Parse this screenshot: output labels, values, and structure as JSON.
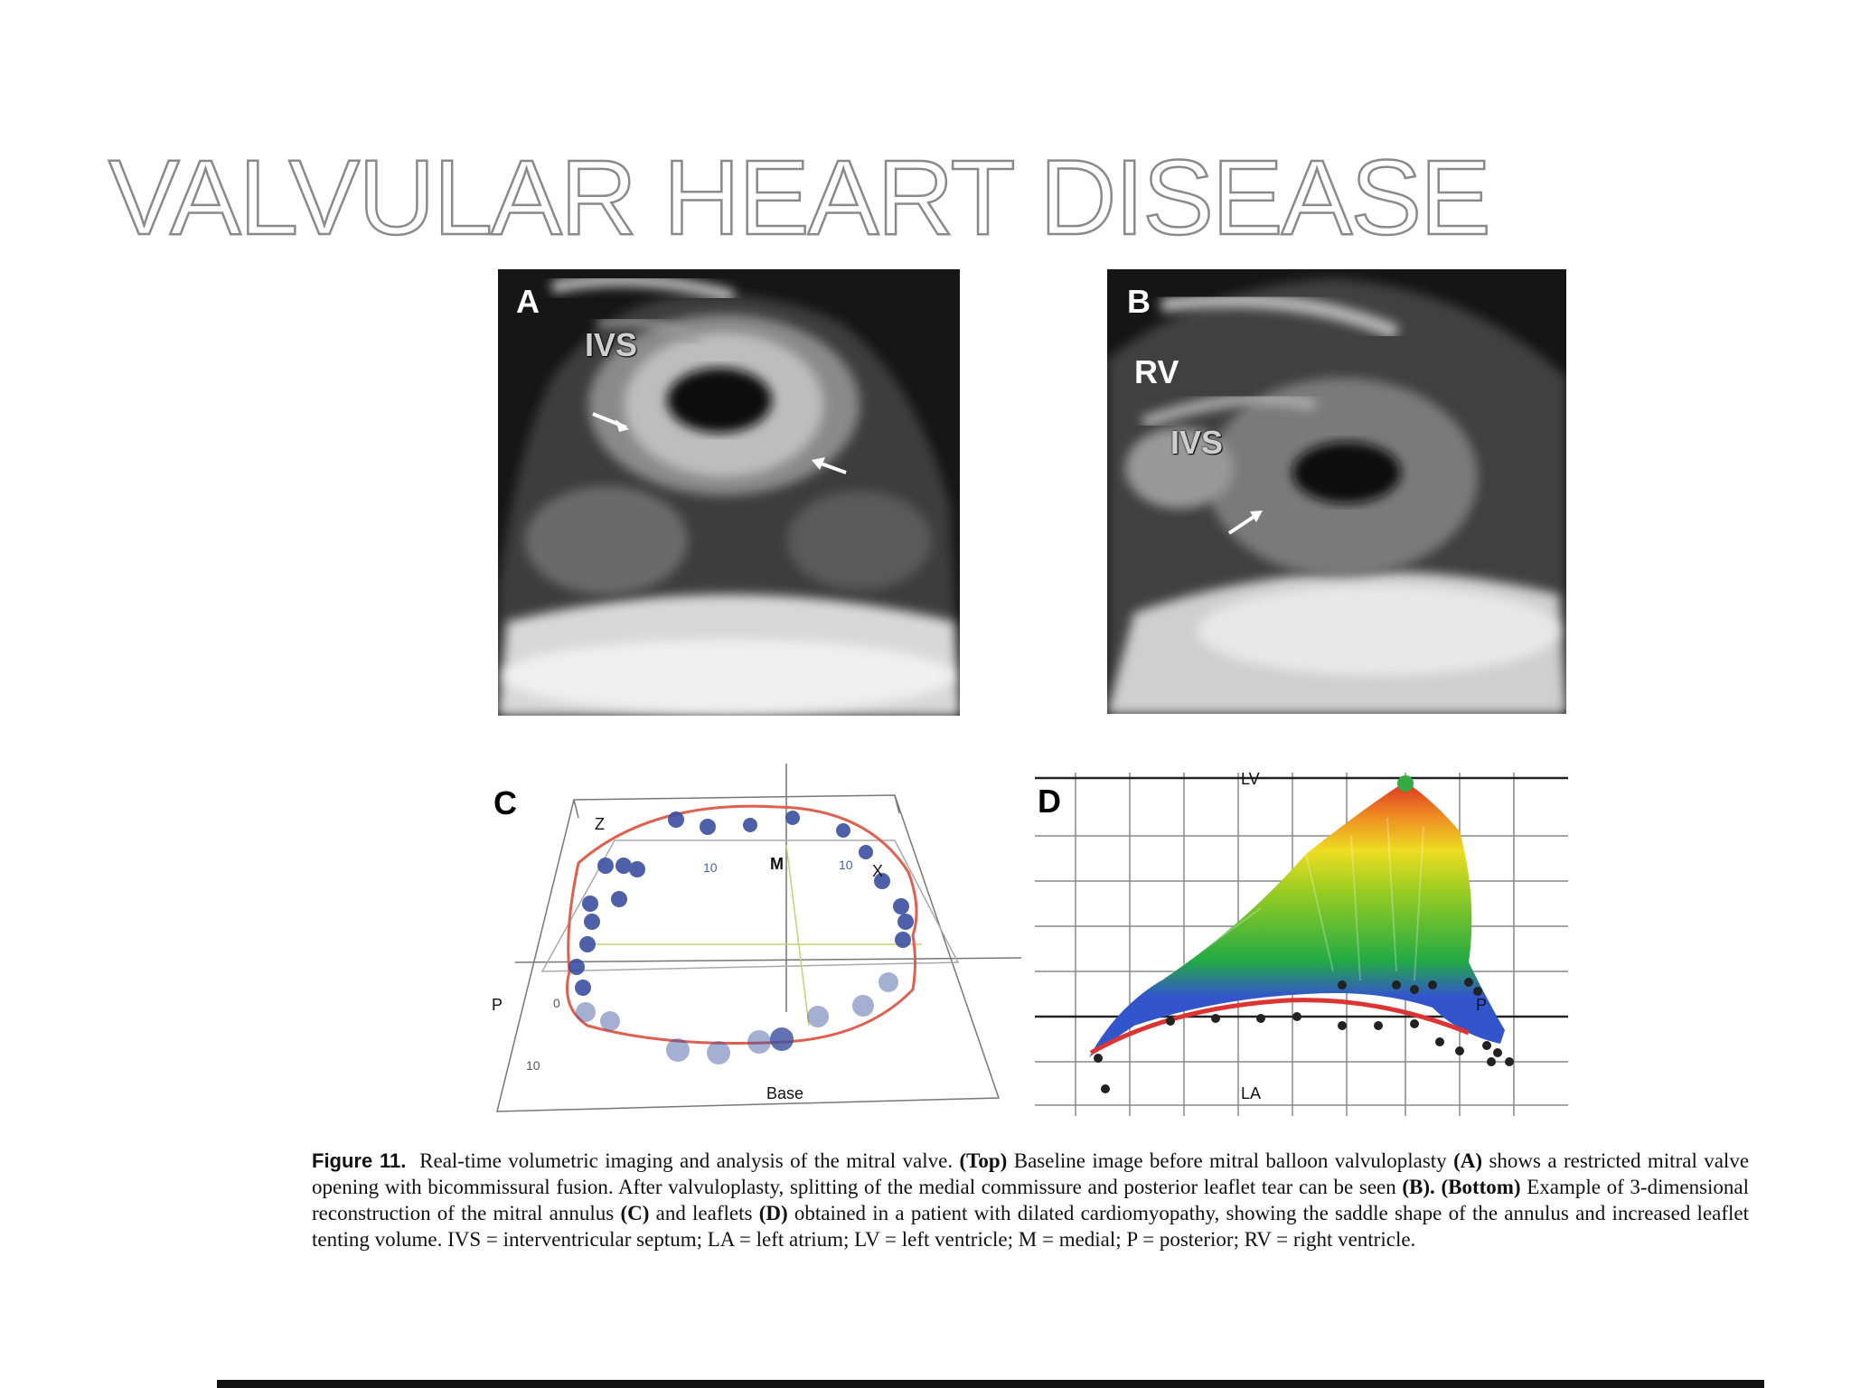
{
  "slide": {
    "title": "VALVULAR HEART DISEASE"
  },
  "panels": {
    "a": {
      "letter": "A",
      "labels": [
        "IVS"
      ]
    },
    "b": {
      "letter": "B",
      "labels": [
        "RV",
        "IVS"
      ]
    },
    "c": {
      "letter": "C",
      "labels": {
        "z": "Z",
        "x": "X",
        "m": "M",
        "p": "P",
        "base": "Base",
        "tick_left": "10",
        "tick_right": "10",
        "tick_low": "10",
        "tick_zero": "0"
      }
    },
    "d": {
      "letter": "D",
      "labels": {
        "lv": "LV",
        "la": "LA",
        "p": "P"
      }
    }
  },
  "caption": {
    "figure_label": "Figure 11.",
    "intro": "Real-time volumetric imaging and analysis of the mitral valve.",
    "top_label": "(Top)",
    "text1": "Baseline image before mitral balloon valvuloplasty",
    "ref_a": "(A)",
    "text2": "shows a restricted mitral valve opening with bicommissural fusion. After valvuloplasty, splitting of the medial commissure and posterior leaflet tear can be seen",
    "ref_b": "(B).",
    "bottom_label": "(Bottom)",
    "text3": "Example of 3-dimensional reconstruction of the mitral annulus",
    "ref_c": "(C)",
    "text4": "and leaflets",
    "ref_d": "(D)",
    "text5": "obtained in a patient with dilated cardiomyopathy, showing the saddle shape of the annulus and increased leaflet tenting volume. IVS = interventricular septum; LA = left atrium; LV = left ventricle; M = medial; P = posterior; RV = right ventricle."
  },
  "colors": {
    "title_outline": "#8a8a8a",
    "annulus_curve": "#e05040",
    "points": "#3a4fa0",
    "surface_low": "#3355cc",
    "surface_high": "#dd3322"
  }
}
